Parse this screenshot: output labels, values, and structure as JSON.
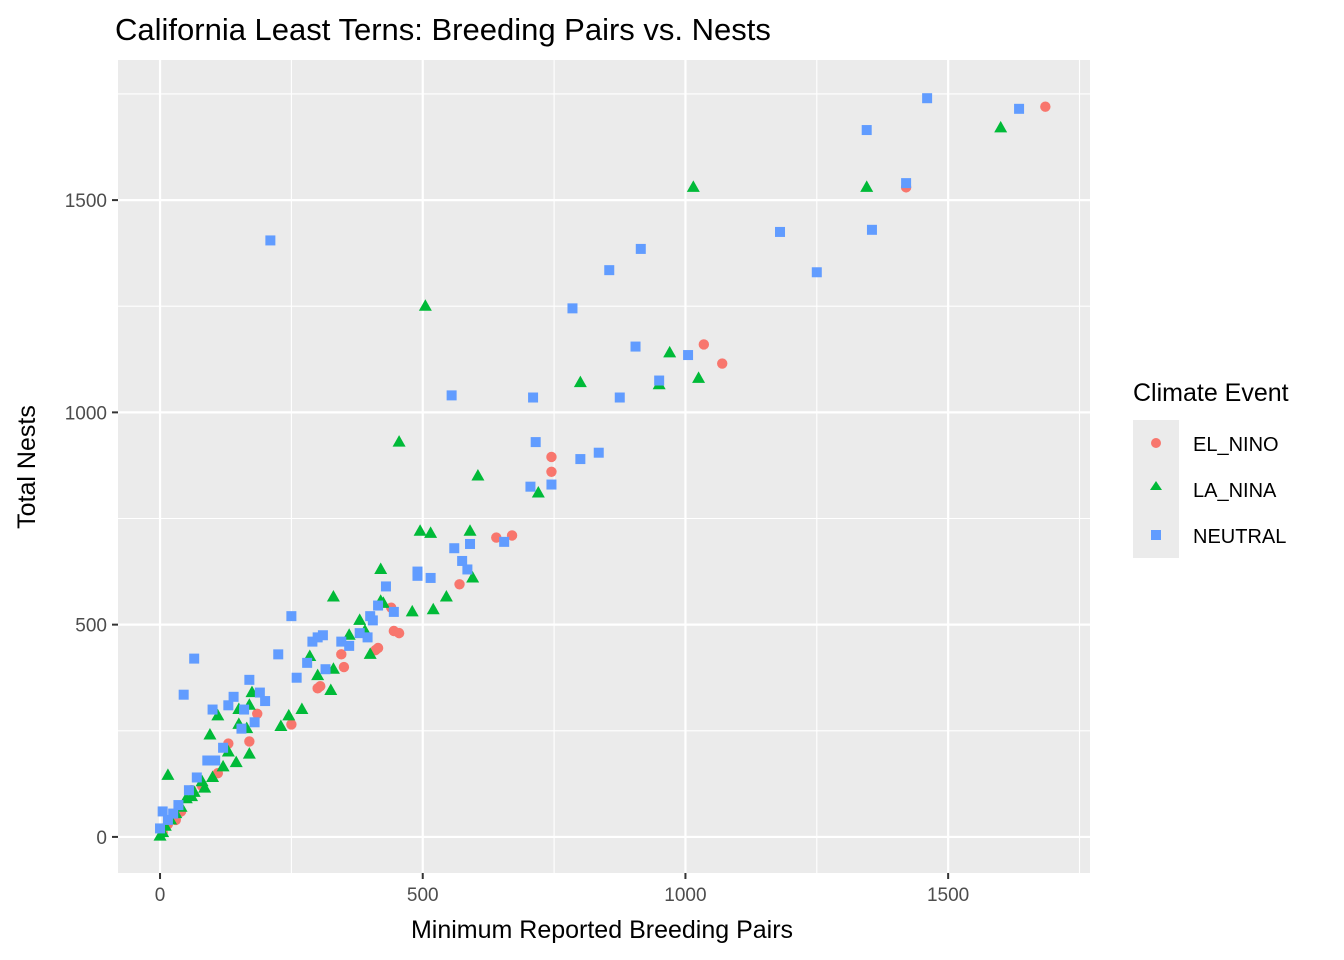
{
  "chart_data": {
    "type": "scatter",
    "title": "California Least Terns: Breeding Pairs vs. Nests",
    "xlabel": "Minimum Reported Breeding Pairs",
    "ylabel": "Total Nests",
    "xlim": [
      -80,
      1770
    ],
    "ylim": [
      -85,
      1830
    ],
    "xticks": [
      0,
      500,
      1000,
      1500
    ],
    "xtick_labels": [
      "0",
      "500",
      "1000",
      "1500"
    ],
    "yticks": [
      0,
      500,
      1000,
      1500
    ],
    "ytick_labels": [
      "0",
      "500",
      "1000",
      "1500"
    ],
    "grid": true,
    "legend": {
      "title": "Climate Event",
      "position": "right",
      "entries": [
        "EL_NINO",
        "LA_NINA",
        "NEUTRAL"
      ]
    },
    "series": [
      {
        "name": "EL_NINO",
        "color": "#F8766D",
        "shape": "circle",
        "points": [
          [
            1685,
            1720
          ],
          [
            1420,
            1530
          ],
          [
            1035,
            1160
          ],
          [
            1070,
            1115
          ],
          [
            745,
            895
          ],
          [
            745,
            860
          ],
          [
            670,
            710
          ],
          [
            640,
            705
          ],
          [
            570,
            595
          ],
          [
            445,
            485
          ],
          [
            455,
            480
          ],
          [
            415,
            445
          ],
          [
            410,
            440
          ],
          [
            440,
            540
          ],
          [
            350,
            400
          ],
          [
            345,
            430
          ],
          [
            305,
            355
          ],
          [
            300,
            350
          ],
          [
            250,
            265
          ],
          [
            185,
            290
          ],
          [
            130,
            220
          ],
          [
            170,
            225
          ],
          [
            110,
            150
          ],
          [
            80,
            120
          ],
          [
            60,
            110
          ],
          [
            40,
            60
          ],
          [
            30,
            40
          ],
          [
            15,
            30
          ],
          [
            5,
            10
          ]
        ]
      },
      {
        "name": "LA_NINA",
        "color": "#00BA38",
        "shape": "triangle",
        "points": [
          [
            1600,
            1670
          ],
          [
            1345,
            1530
          ],
          [
            1015,
            1530
          ],
          [
            970,
            1140
          ],
          [
            1025,
            1080
          ],
          [
            800,
            1070
          ],
          [
            950,
            1065
          ],
          [
            505,
            1250
          ],
          [
            455,
            930
          ],
          [
            605,
            850
          ],
          [
            720,
            810
          ],
          [
            495,
            720
          ],
          [
            515,
            715
          ],
          [
            590,
            720
          ],
          [
            595,
            610
          ],
          [
            545,
            565
          ],
          [
            520,
            535
          ],
          [
            480,
            530
          ],
          [
            420,
            630
          ],
          [
            330,
            565
          ],
          [
            420,
            555
          ],
          [
            425,
            550
          ],
          [
            380,
            510
          ],
          [
            360,
            475
          ],
          [
            390,
            485
          ],
          [
            400,
            430
          ],
          [
            330,
            395
          ],
          [
            325,
            345
          ],
          [
            285,
            425
          ],
          [
            300,
            380
          ],
          [
            270,
            300
          ],
          [
            245,
            285
          ],
          [
            230,
            260
          ],
          [
            175,
            340
          ],
          [
            170,
            310
          ],
          [
            150,
            300
          ],
          [
            110,
            285
          ],
          [
            150,
            265
          ],
          [
            165,
            255
          ],
          [
            95,
            240
          ],
          [
            130,
            200
          ],
          [
            170,
            195
          ],
          [
            145,
            175
          ],
          [
            120,
            165
          ],
          [
            100,
            140
          ],
          [
            80,
            130
          ],
          [
            65,
            105
          ],
          [
            50,
            90
          ],
          [
            40,
            70
          ],
          [
            30,
            55
          ],
          [
            20,
            40
          ],
          [
            15,
            145
          ],
          [
            10,
            25
          ],
          [
            5,
            10
          ],
          [
            0,
            2
          ],
          [
            60,
            95
          ],
          [
            85,
            115
          ]
        ]
      },
      {
        "name": "NEUTRAL",
        "color": "#619CFF",
        "shape": "square",
        "points": [
          [
            1460,
            1740
          ],
          [
            1635,
            1715
          ],
          [
            1345,
            1665
          ],
          [
            1420,
            1540
          ],
          [
            1355,
            1430
          ],
          [
            1180,
            1425
          ],
          [
            1250,
            1330
          ],
          [
            915,
            1385
          ],
          [
            855,
            1335
          ],
          [
            785,
            1245
          ],
          [
            905,
            1155
          ],
          [
            1005,
            1135
          ],
          [
            950,
            1075
          ],
          [
            875,
            1035
          ],
          [
            710,
            1035
          ],
          [
            555,
            1040
          ],
          [
            210,
            1405
          ],
          [
            715,
            930
          ],
          [
            835,
            905
          ],
          [
            800,
            890
          ],
          [
            745,
            830
          ],
          [
            705,
            825
          ],
          [
            655,
            695
          ],
          [
            590,
            690
          ],
          [
            560,
            680
          ],
          [
            585,
            630
          ],
          [
            515,
            610
          ],
          [
            490,
            625
          ],
          [
            490,
            615
          ],
          [
            575,
            650
          ],
          [
            430,
            590
          ],
          [
            445,
            530
          ],
          [
            400,
            520
          ],
          [
            405,
            510
          ],
          [
            415,
            545
          ],
          [
            380,
            480
          ],
          [
            395,
            470
          ],
          [
            360,
            450
          ],
          [
            345,
            460
          ],
          [
            310,
            475
          ],
          [
            300,
            470
          ],
          [
            290,
            460
          ],
          [
            250,
            520
          ],
          [
            225,
            430
          ],
          [
            190,
            340
          ],
          [
            200,
            320
          ],
          [
            170,
            370
          ],
          [
            160,
            300
          ],
          [
            140,
            330
          ],
          [
            130,
            310
          ],
          [
            100,
            300
          ],
          [
            65,
            420
          ],
          [
            45,
            335
          ],
          [
            180,
            270
          ],
          [
            155,
            255
          ],
          [
            120,
            210
          ],
          [
            105,
            180
          ],
          [
            90,
            180
          ],
          [
            70,
            140
          ],
          [
            55,
            110
          ],
          [
            35,
            75
          ],
          [
            25,
            55
          ],
          [
            15,
            40
          ],
          [
            5,
            60
          ],
          [
            0,
            20
          ],
          [
            260,
            375
          ],
          [
            280,
            410
          ],
          [
            315,
            395
          ]
        ]
      }
    ]
  }
}
